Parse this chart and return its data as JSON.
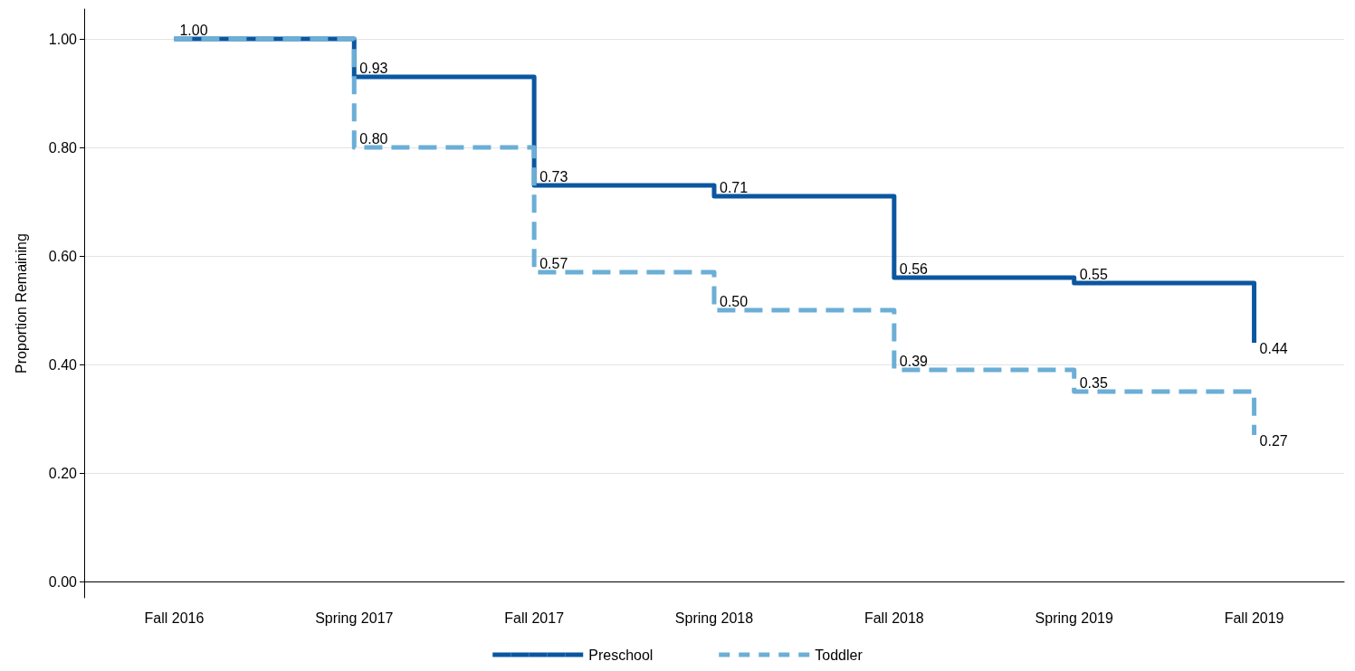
{
  "chart_data": {
    "type": "step",
    "ylabel": "Proportion Remaining",
    "categories": [
      "Fall 2016",
      "Spring 2017",
      "Fall 2017",
      "Spring 2018",
      "Fall 2018",
      "Spring 2019",
      "Fall 2019"
    ],
    "series": [
      {
        "name": "Preschool",
        "color": "#0b56a0",
        "line_style": "solid",
        "values": [
          1.0,
          0.93,
          0.73,
          0.71,
          0.56,
          0.55,
          0.44
        ],
        "value_labels": [
          "1.00",
          "0.93",
          "0.73",
          "0.71",
          "0.56",
          "0.55",
          "0.44"
        ]
      },
      {
        "name": "Toddler",
        "color": "#6baed6",
        "line_style": "dashed",
        "values": [
          1.0,
          0.8,
          0.57,
          0.5,
          0.39,
          0.35,
          0.27
        ],
        "value_labels": [
          null,
          "0.80",
          "0.57",
          "0.50",
          "0.39",
          "0.35",
          "0.27"
        ]
      }
    ],
    "ylim": [
      -0.03,
      1.055
    ],
    "yticks": [
      {
        "value": 0,
        "label": "0.00"
      },
      {
        "value": 0.2,
        "label": "0.20"
      },
      {
        "value": 0.4,
        "label": "0.40"
      },
      {
        "value": 0.6,
        "label": "0.60"
      },
      {
        "value": 0.8,
        "label": "0.80"
      },
      {
        "value": 1,
        "label": "1.00"
      }
    ],
    "grid": "y",
    "legend": "bottom",
    "marker": "none"
  }
}
